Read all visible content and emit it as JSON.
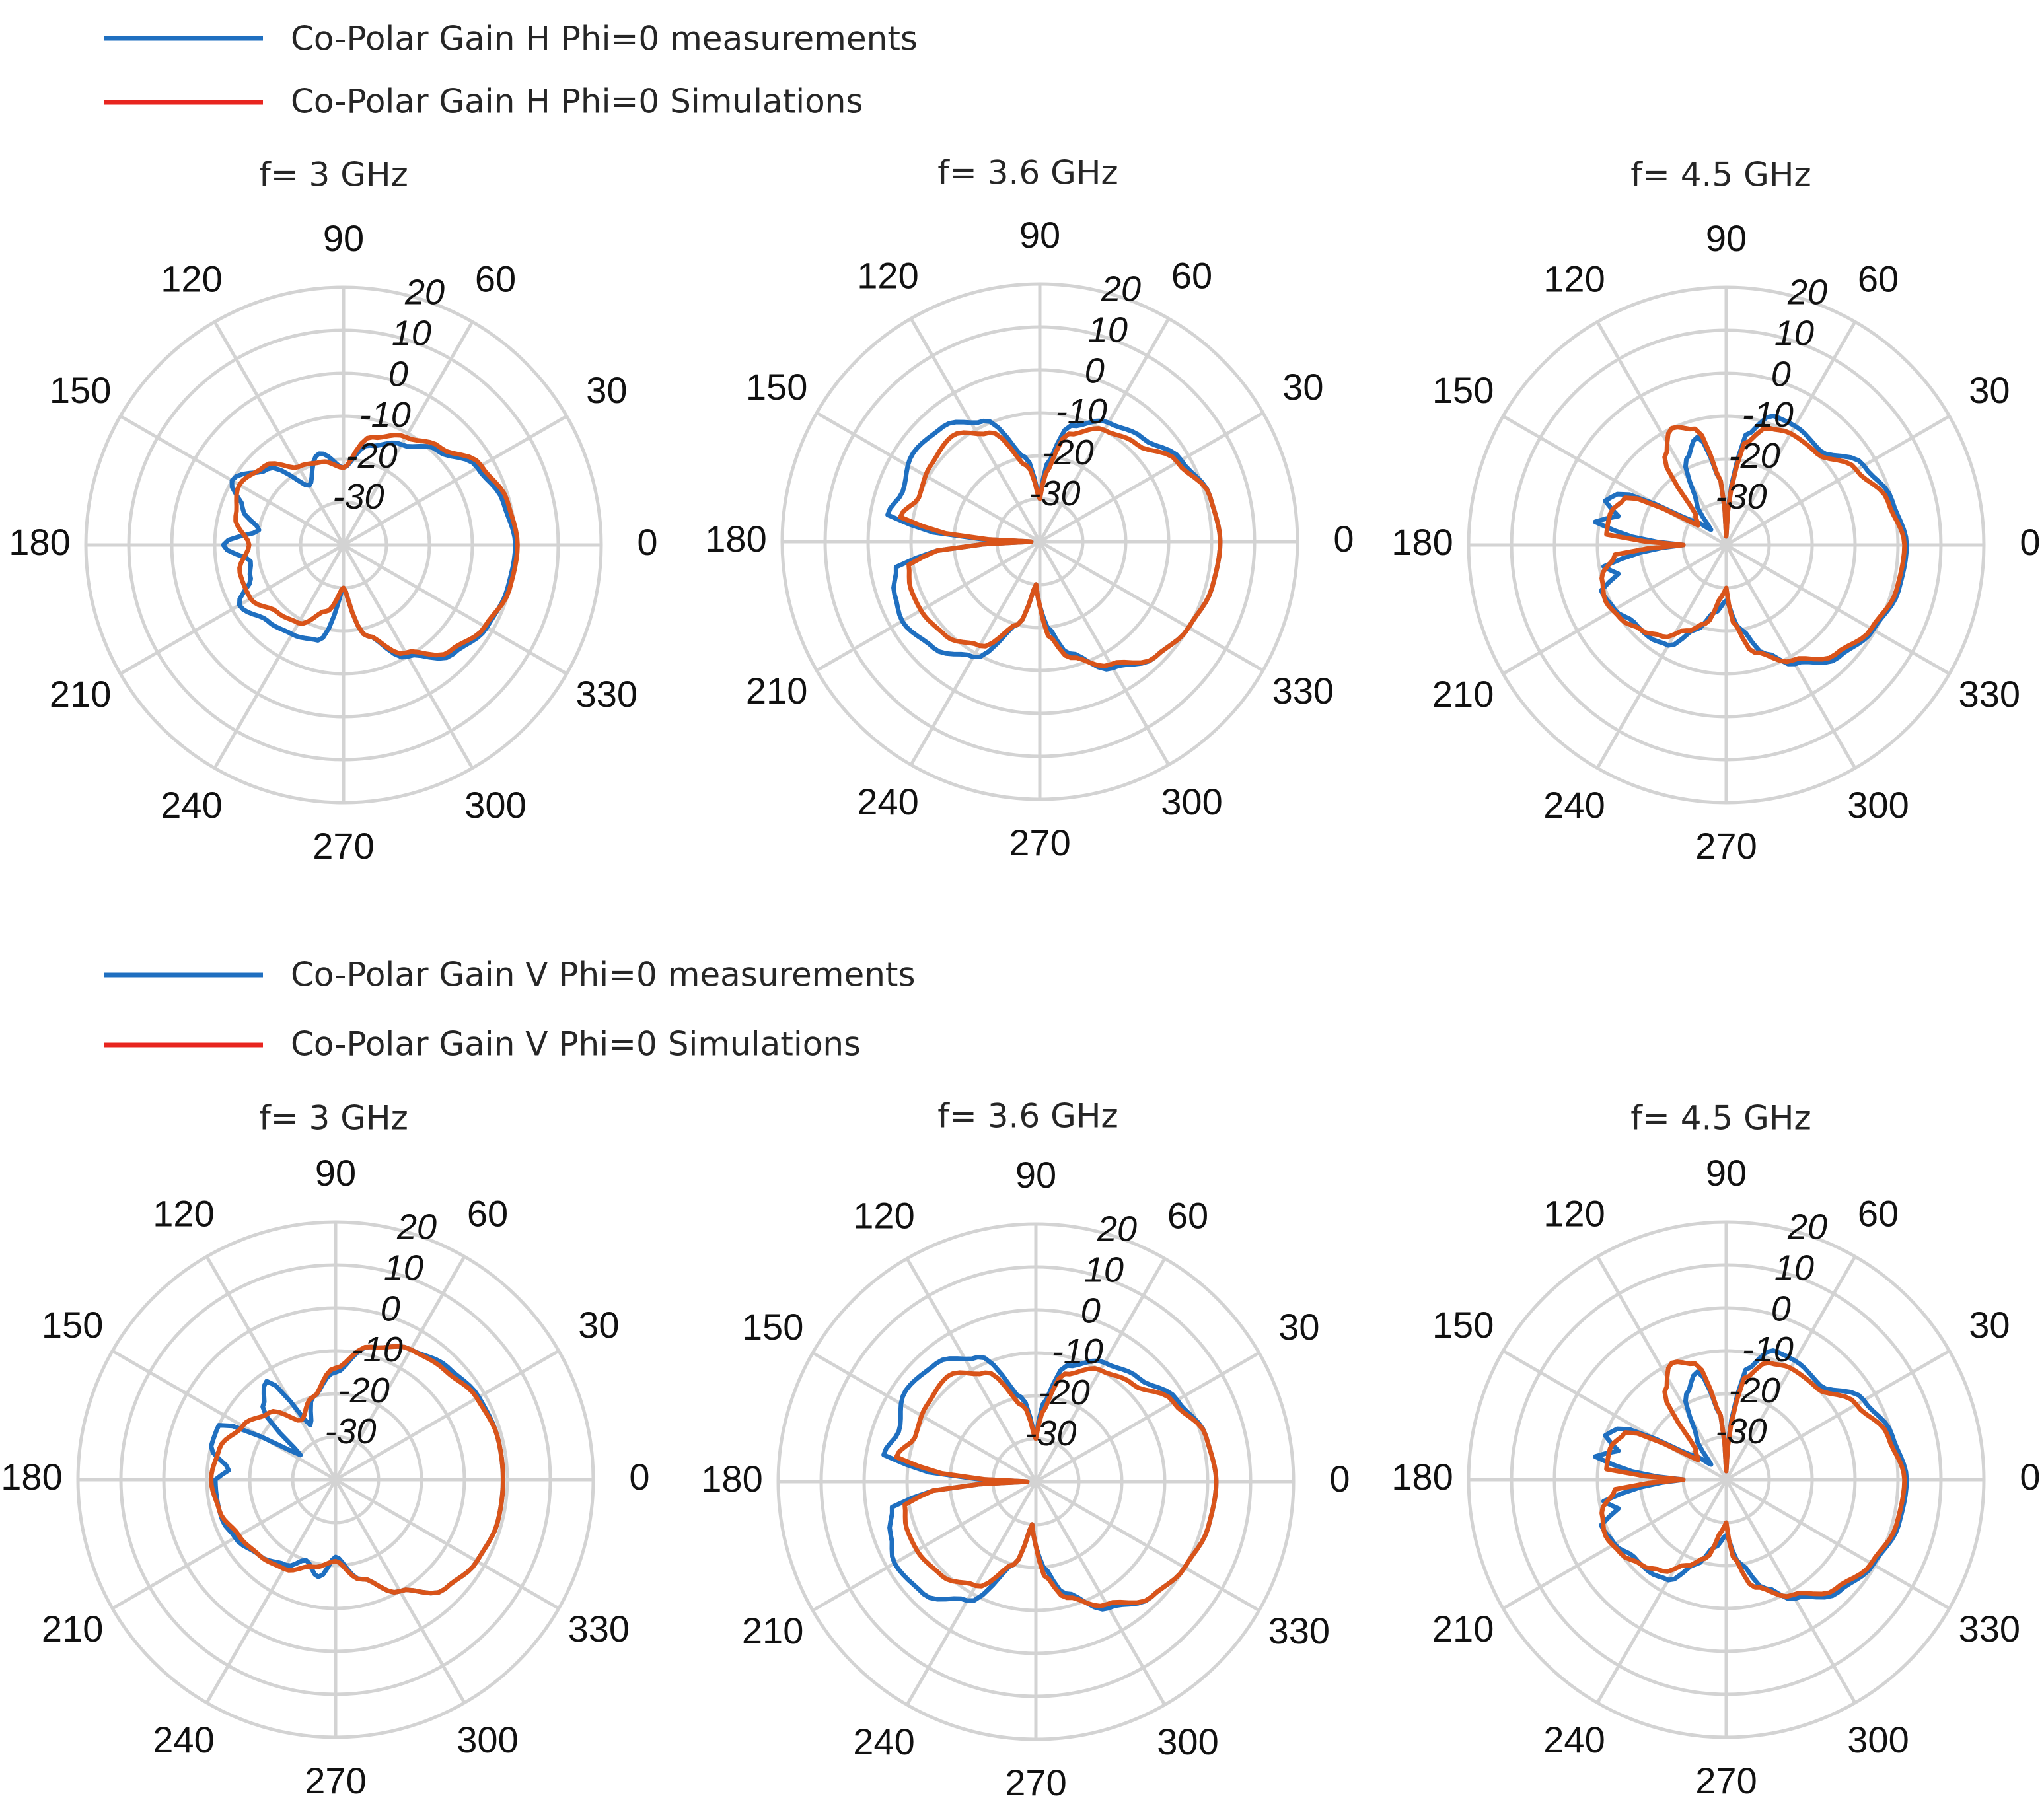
{
  "colors": {
    "legend_measured": "#1f6fc0",
    "legend_simulated": "#e8251f",
    "trace_measured": "#1f6fc0",
    "trace_simulated": "#d9541a",
    "grid": "#d3d3d3"
  },
  "legends": [
    {
      "measured": "Co-Polar Gain H Phi=0 measurements",
      "simulated": "Co-Polar Gain H Phi=0 Simulations"
    },
    {
      "measured": "Co-Polar Gain V Phi=0 measurements",
      "simulated": "Co-Polar Gain V Phi=0 Simulations"
    }
  ],
  "chart_data": [
    {
      "type": "polar",
      "title": "f= 3 GHz",
      "polarization": "H",
      "angle_ticks": [
        "0",
        "30",
        "60",
        "90",
        "120",
        "150",
        "180",
        "210",
        "240",
        "270",
        "300",
        "330"
      ],
      "radial_ticks": [
        "-30",
        "-20",
        "-10",
        "0",
        "10",
        "20"
      ],
      "rlim": [
        -40,
        20
      ],
      "series": [
        {
          "name": "Co-Polar Gain H Phi=0 measurements",
          "angles_deg": [
            0,
            15,
            30,
            45,
            60,
            75,
            90,
            105,
            120,
            135,
            150,
            160,
            170,
            180,
            190,
            200,
            210,
            225,
            240,
            255,
            270,
            285,
            300,
            315,
            330,
            345
          ],
          "values": [
            0,
            -1.5,
            -4,
            -9,
            -13,
            -16,
            -22,
            -18,
            -24,
            -15,
            -10,
            -15,
            -20,
            -12,
            -18,
            -17,
            -12,
            -15,
            -16,
            -17,
            -30,
            -18,
            -10,
            -4,
            -1.5,
            -0.5
          ]
        },
        {
          "name": "Co-Polar Gain H Phi=0 Simulations",
          "angles_deg": [
            0,
            15,
            30,
            45,
            60,
            75,
            90,
            105,
            120,
            135,
            150,
            165,
            180,
            195,
            210,
            225,
            240,
            255,
            270,
            285,
            300,
            315,
            330,
            345
          ],
          "values": [
            0.5,
            -0.5,
            -3,
            -8,
            -11,
            -14,
            -22,
            -20,
            -19,
            -14,
            -12,
            -14,
            -18,
            -15,
            -15,
            -18,
            -19,
            -24,
            -30,
            -18,
            -11,
            -5,
            -2,
            0
          ]
        }
      ]
    },
    {
      "type": "polar",
      "title": "f= 3.6 GHz",
      "polarization": "H",
      "angle_ticks": [
        "0",
        "30",
        "60",
        "90",
        "120",
        "150",
        "180",
        "210",
        "240",
        "270",
        "300",
        "330"
      ],
      "radial_ticks": [
        "-30",
        "-20",
        "-10",
        "0",
        "10",
        "20"
      ],
      "rlim": [
        -40,
        20
      ],
      "series": [
        {
          "name": "Co-Polar Gain H Phi=0 measurements",
          "angles_deg": [
            0,
            15,
            30,
            45,
            60,
            75,
            85,
            90,
            100,
            115,
            130,
            145,
            160,
            170,
            175,
            180,
            185,
            190,
            200,
            210,
            225,
            240,
            255,
            265,
            270,
            275,
            285,
            300,
            315,
            330,
            345
          ],
          "values": [
            2,
            1,
            -2,
            -6,
            -8,
            -12,
            -22,
            -30,
            -20,
            -9,
            -5,
            -4,
            -6,
            -4,
            -15,
            -38,
            -16,
            -6,
            -4,
            -3,
            -5,
            -9,
            -20,
            -30,
            -25,
            -20,
            -13,
            -6,
            -2,
            0,
            1.5
          ]
        },
        {
          "name": "Co-Polar Gain H Phi=0 Simulations",
          "angles_deg": [
            0,
            15,
            30,
            45,
            60,
            75,
            85,
            90,
            100,
            115,
            130,
            145,
            160,
            170,
            175,
            180,
            185,
            190,
            200,
            210,
            225,
            240,
            255,
            265,
            270,
            275,
            285,
            300,
            315,
            330,
            345
          ],
          "values": [
            2,
            1,
            -3,
            -8,
            -10,
            -14,
            -24,
            -30,
            -22,
            -12,
            -8,
            -9,
            -10,
            -7,
            -18,
            -38,
            -16,
            -9,
            -8,
            -8,
            -9,
            -12,
            -20,
            -30,
            -25,
            -18,
            -12,
            -7,
            -2,
            0,
            1.5
          ]
        }
      ]
    },
    {
      "type": "polar",
      "title": "f= 4.5 GHz",
      "polarization": "H",
      "angle_ticks": [
        "0",
        "30",
        "60",
        "90",
        "120",
        "150",
        "180",
        "210",
        "240",
        "270",
        "300",
        "330"
      ],
      "radial_ticks": [
        "-30",
        "-20",
        "-10",
        "0",
        "10",
        "20"
      ],
      "rlim": [
        -40,
        20
      ],
      "series": [
        {
          "name": "Co-Polar Gain H Phi=0 measurements",
          "angles_deg": [
            0,
            15,
            30,
            45,
            60,
            70,
            80,
            85,
            90,
            95,
            105,
            115,
            125,
            135,
            145,
            155,
            160,
            165,
            170,
            175,
            180,
            185,
            190,
            195,
            200,
            210,
            220,
            230,
            240,
            250,
            260,
            270,
            280,
            290,
            300,
            315,
            330,
            345
          ],
          "values": [
            2,
            0,
            -3,
            -9,
            -8,
            -8,
            -14,
            -26,
            -38,
            -25,
            -14,
            -18,
            -28,
            -35,
            -30,
            -12,
            -10,
            -14,
            -9,
            -18,
            -30,
            -20,
            -11,
            -14,
            -9,
            -10,
            -12,
            -12,
            -13,
            -19,
            -24,
            -27,
            -20,
            -13,
            -8,
            -3,
            -0.5,
            1.5
          ]
        },
        {
          "name": "Co-Polar Gain H Phi=0 Simulations",
          "angles_deg": [
            0,
            15,
            30,
            45,
            60,
            70,
            80,
            85,
            90,
            95,
            105,
            115,
            125,
            135,
            145,
            155,
            165,
            175,
            180,
            185,
            195,
            205,
            215,
            225,
            235,
            245,
            255,
            265,
            270,
            275,
            285,
            300,
            315,
            330,
            345
          ],
          "values": [
            1.5,
            -1,
            -5,
            -10,
            -10,
            -11,
            -16,
            -27,
            -38,
            -25,
            -12,
            -10,
            -15,
            -30,
            -32,
            -14,
            -12,
            -12,
            -30,
            -14,
            -10,
            -9,
            -10,
            -12,
            -14,
            -18,
            -21,
            -28,
            -30,
            -22,
            -14,
            -9,
            -4,
            -1,
            1
          ]
        }
      ]
    },
    {
      "type": "polar",
      "title": "f= 3 GHz",
      "polarization": "V",
      "angle_ticks": [
        "0",
        "30",
        "60",
        "90",
        "120",
        "150",
        "180",
        "210",
        "240",
        "270",
        "300",
        "330"
      ],
      "radial_ticks": [
        "-30",
        "-20",
        "-10",
        "0",
        "10",
        "20"
      ],
      "rlim": [
        -40,
        20
      ],
      "series": [
        {
          "name": "Co-Polar Gain V Phi=0 measurements",
          "angles_deg": [
            0,
            15,
            30,
            45,
            60,
            75,
            90,
            105,
            115,
            125,
            135,
            145,
            155,
            165,
            175,
            180,
            190,
            200,
            210,
            225,
            240,
            250,
            260,
            270,
            285,
            300,
            315,
            330,
            345
          ],
          "values": [
            -1,
            -1,
            -1.5,
            -3,
            -5,
            -8,
            -15,
            -20,
            -26,
            -12,
            -16,
            -30,
            -10,
            -10,
            -15,
            -12,
            -12,
            -12,
            -13,
            -15,
            -17,
            -20,
            -17,
            -22,
            -16,
            -10,
            -4,
            -2,
            -1
          ]
        },
        {
          "name": "Co-Polar Gain V Phi=0 Simulations",
          "angles_deg": [
            0,
            15,
            30,
            45,
            60,
            75,
            90,
            105,
            120,
            135,
            150,
            165,
            180,
            195,
            210,
            225,
            240,
            255,
            270,
            285,
            300,
            315,
            330,
            345
          ],
          "values": [
            -1,
            -1,
            -2,
            -4,
            -5,
            -8,
            -14,
            -20,
            -24,
            -18,
            -15,
            -12,
            -11,
            -12,
            -14,
            -15,
            -16,
            -19,
            -21,
            -16,
            -10,
            -4,
            -2,
            -1
          ]
        }
      ]
    },
    {
      "type": "polar",
      "title": "f= 3.6 GHz",
      "polarization": "V",
      "angle_ticks": [
        "0",
        "30",
        "60",
        "90",
        "120",
        "150",
        "180",
        "210",
        "240",
        "270",
        "300",
        "330"
      ],
      "radial_ticks": [
        "-30",
        "-20",
        "-10",
        "0",
        "10",
        "20"
      ],
      "rlim": [
        -40,
        20
      ],
      "series": [
        {
          "name": "Co-Polar Gain V Phi=0 measurements",
          "angles_deg": [
            0,
            15,
            30,
            45,
            60,
            75,
            85,
            90,
            100,
            115,
            130,
            145,
            160,
            170,
            175,
            180,
            185,
            190,
            200,
            210,
            225,
            240,
            255,
            265,
            270,
            275,
            285,
            300,
            315,
            330,
            345
          ],
          "values": [
            2,
            1,
            -2,
            -6,
            -8,
            -12,
            -22,
            -30,
            -20,
            -8,
            -4,
            -3,
            -6,
            -4,
            -15,
            -38,
            -16,
            -6,
            -4,
            -2,
            -3,
            -8,
            -20,
            -30,
            -25,
            -20,
            -13,
            -6,
            -2,
            0,
            1.5
          ]
        },
        {
          "name": "Co-Polar Gain V Phi=0 Simulations",
          "angles_deg": [
            0,
            15,
            30,
            45,
            60,
            75,
            85,
            90,
            100,
            115,
            130,
            145,
            160,
            170,
            175,
            180,
            185,
            190,
            200,
            210,
            225,
            240,
            255,
            265,
            270,
            275,
            285,
            300,
            315,
            330,
            345
          ],
          "values": [
            2,
            1,
            -3,
            -8,
            -10,
            -14,
            -24,
            -30,
            -22,
            -12,
            -8,
            -9,
            -10,
            -7,
            -18,
            -38,
            -16,
            -9,
            -8,
            -8,
            -9,
            -12,
            -20,
            -30,
            -25,
            -18,
            -12,
            -7,
            -2,
            0,
            1.5
          ]
        }
      ]
    },
    {
      "type": "polar",
      "title": "f= 4.5 GHz",
      "polarization": "V",
      "angle_ticks": [
        "0",
        "30",
        "60",
        "90",
        "120",
        "150",
        "180",
        "210",
        "240",
        "270",
        "300",
        "330"
      ],
      "radial_ticks": [
        "-30",
        "-20",
        "-10",
        "0",
        "10",
        "20"
      ],
      "rlim": [
        -40,
        20
      ],
      "series": [
        {
          "name": "Co-Polar Gain V Phi=0 measurements",
          "angles_deg": [
            0,
            15,
            30,
            45,
            60,
            70,
            80,
            85,
            90,
            95,
            105,
            115,
            125,
            135,
            145,
            155,
            160,
            165,
            170,
            175,
            180,
            185,
            190,
            195,
            200,
            210,
            220,
            230,
            240,
            250,
            260,
            270,
            280,
            290,
            300,
            315,
            330,
            345
          ],
          "values": [
            2,
            0,
            -3,
            -9,
            -8,
            -8,
            -14,
            -26,
            -38,
            -25,
            -14,
            -18,
            -28,
            -35,
            -30,
            -12,
            -10,
            -14,
            -9,
            -18,
            -30,
            -20,
            -11,
            -14,
            -9,
            -10,
            -12,
            -12,
            -13,
            -19,
            -24,
            -27,
            -20,
            -13,
            -8,
            -3,
            -0.5,
            1.5
          ]
        },
        {
          "name": "Co-Polar Gain V Phi=0 Simulations",
          "angles_deg": [
            0,
            15,
            30,
            45,
            60,
            70,
            80,
            85,
            90,
            95,
            105,
            115,
            125,
            135,
            145,
            155,
            165,
            175,
            180,
            185,
            195,
            205,
            215,
            225,
            235,
            245,
            255,
            265,
            270,
            275,
            285,
            300,
            315,
            330,
            345
          ],
          "values": [
            1.5,
            -1,
            -5,
            -10,
            -10,
            -11,
            -16,
            -27,
            -38,
            -25,
            -12,
            -10,
            -15,
            -30,
            -32,
            -14,
            -12,
            -12,
            -30,
            -14,
            -10,
            -9,
            -10,
            -12,
            -14,
            -18,
            -21,
            -28,
            -30,
            -22,
            -14,
            -9,
            -4,
            -1,
            1
          ]
        }
      ]
    }
  ]
}
